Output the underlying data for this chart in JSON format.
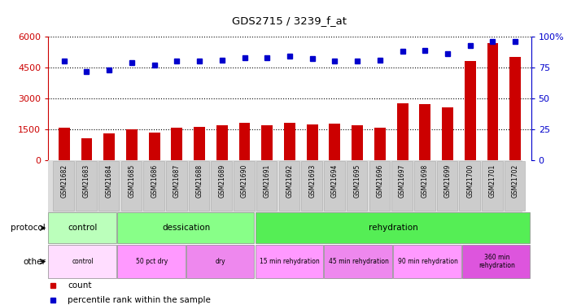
{
  "title": "GDS2715 / 3239_f_at",
  "samples": [
    "GSM21682",
    "GSM21683",
    "GSM21684",
    "GSM21685",
    "GSM21686",
    "GSM21687",
    "GSM21688",
    "GSM21689",
    "GSM21690",
    "GSM21691",
    "GSM21692",
    "GSM21693",
    "GSM21694",
    "GSM21695",
    "GSM21696",
    "GSM21697",
    "GSM21698",
    "GSM21699",
    "GSM21700",
    "GSM21701",
    "GSM21702"
  ],
  "counts": [
    1580,
    1080,
    1300,
    1480,
    1350,
    1560,
    1600,
    1680,
    1820,
    1700,
    1820,
    1750,
    1780,
    1680,
    1580,
    2750,
    2720,
    2580,
    4820,
    5680,
    5000
  ],
  "percentile": [
    80,
    72,
    73,
    79,
    77,
    80,
    80,
    81,
    83,
    83,
    84,
    82,
    80,
    80,
    81,
    88,
    89,
    86,
    93,
    96,
    96
  ],
  "bar_color": "#cc0000",
  "dot_color": "#0000cc",
  "ylim_left": [
    0,
    6000
  ],
  "ylim_right": [
    0,
    100
  ],
  "yticks_left": [
    0,
    1500,
    3000,
    4500,
    6000
  ],
  "yticks_right": [
    0,
    25,
    50,
    75,
    100
  ],
  "ytick_labels_right": [
    "0",
    "25",
    "50",
    "75",
    "100%"
  ],
  "protocol_groups": [
    {
      "label": "control",
      "start": 0,
      "end": 3,
      "color": "#bbffbb"
    },
    {
      "label": "dessication",
      "start": 3,
      "end": 9,
      "color": "#88ff88"
    },
    {
      "label": "rehydration",
      "start": 9,
      "end": 21,
      "color": "#55ee55"
    }
  ],
  "other_groups": [
    {
      "label": "control",
      "start": 0,
      "end": 3,
      "color": "#ffddff"
    },
    {
      "label": "50 pct dry",
      "start": 3,
      "end": 6,
      "color": "#ff99ff"
    },
    {
      "label": "dry",
      "start": 6,
      "end": 9,
      "color": "#ee88ee"
    },
    {
      "label": "15 min rehydration",
      "start": 9,
      "end": 12,
      "color": "#ff99ff"
    },
    {
      "label": "45 min rehydration",
      "start": 12,
      "end": 15,
      "color": "#ee88ee"
    },
    {
      "label": "90 min rehydration",
      "start": 15,
      "end": 18,
      "color": "#ff99ff"
    },
    {
      "label": "360 min\nrehydration",
      "start": 18,
      "end": 21,
      "color": "#dd55dd"
    }
  ],
  "background_color": "#ffffff",
  "xticklabel_bg": "#cccccc",
  "chart_bg": "#ffffff"
}
